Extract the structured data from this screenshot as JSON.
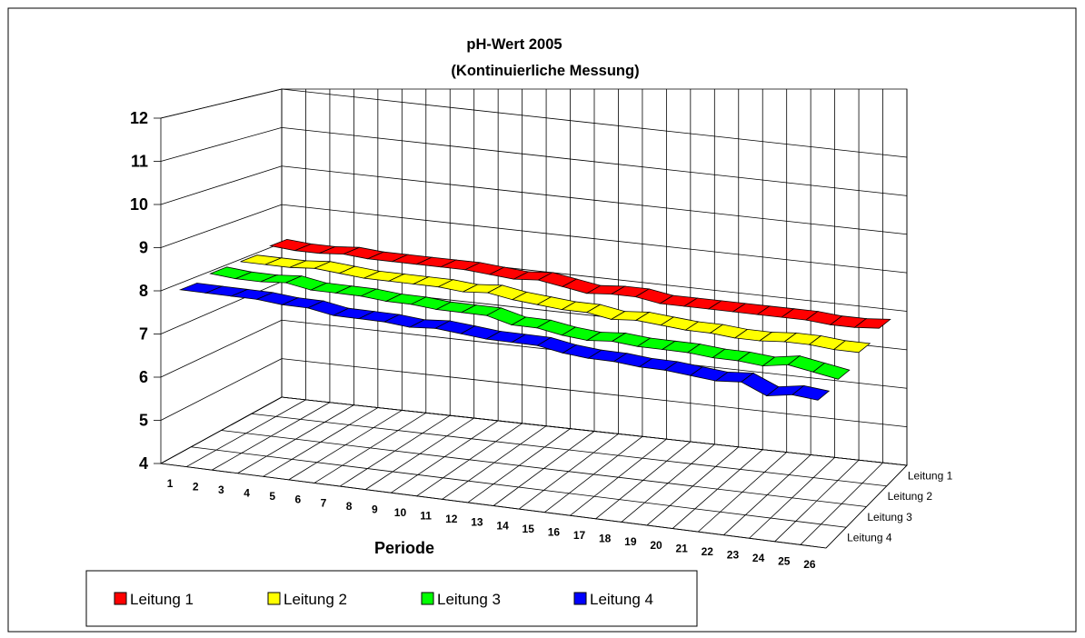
{
  "chart_data": {
    "type": "area",
    "subtype": "3d-ribbon-line",
    "title_line1": "pH-Wert 2005",
    "title_line2": "(Kontinuierliche Messung)",
    "xlabel": "Periode",
    "ylabel": "",
    "ylim": [
      4,
      12
    ],
    "yticks": [
      "4",
      "5",
      "6",
      "7",
      "8",
      "9",
      "10",
      "11",
      "12"
    ],
    "grid": true,
    "legend": "bottom",
    "categories": [
      "1",
      "2",
      "3",
      "4",
      "5",
      "6",
      "7",
      "8",
      "9",
      "10",
      "11",
      "12",
      "13",
      "14",
      "15",
      "16",
      "17",
      "18",
      "19",
      "20",
      "21",
      "22",
      "23",
      "24",
      "25",
      "26"
    ],
    "series": [
      {
        "name": "Leitung 1",
        "color": "#ff0000",
        "values": [
          8.2,
          8.15,
          8.15,
          8.2,
          8.15,
          8.15,
          8.15,
          8.15,
          8.15,
          8.1,
          8.05,
          8.1,
          8.0,
          7.9,
          7.95,
          7.95,
          7.85,
          7.85,
          7.85,
          7.85,
          7.85,
          7.85,
          7.85,
          7.8,
          7.8,
          7.85
        ]
      },
      {
        "name": "Leitung 2",
        "color": "#ffff00",
        "values": [
          8.1,
          8.1,
          8.1,
          8.15,
          8.1,
          8.05,
          8.05,
          8.05,
          8.05,
          8.0,
          8.05,
          7.95,
          7.9,
          7.85,
          7.85,
          7.75,
          7.8,
          7.75,
          7.7,
          7.7,
          7.65,
          7.65,
          7.7,
          7.7,
          7.65,
          7.65
        ]
      },
      {
        "name": "Leitung 3",
        "color": "#00ff00",
        "values": [
          8.1,
          8.05,
          8.05,
          8.1,
          8.0,
          8.0,
          8.0,
          7.95,
          7.95,
          7.9,
          7.9,
          7.9,
          7.75,
          7.75,
          7.65,
          7.6,
          7.65,
          7.6,
          7.6,
          7.6,
          7.55,
          7.55,
          7.5,
          7.6,
          7.5,
          7.4
        ]
      },
      {
        "name": "Leitung 4",
        "color": "#0000ff",
        "values": [
          8.0,
          8.0,
          8.0,
          8.0,
          7.95,
          7.95,
          7.85,
          7.85,
          7.85,
          7.8,
          7.85,
          7.8,
          7.75,
          7.75,
          7.75,
          7.65,
          7.6,
          7.6,
          7.55,
          7.55,
          7.5,
          7.45,
          7.5,
          7.25,
          7.35,
          7.3
        ]
      }
    ],
    "z_categories": [
      "Leitung 1",
      "Leitung 2",
      "Leitung 3",
      "Leitung 4"
    ]
  }
}
